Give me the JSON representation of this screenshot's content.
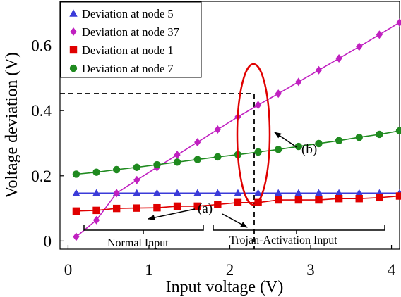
{
  "chart_data": {
    "type": "line",
    "xlabel": "Input voltage (V)",
    "ylabel": "Voltage deviation (V)",
    "xlim": [
      -0.1,
      4.1
    ],
    "ylim": [
      -0.025,
      0.735
    ],
    "xticks": [
      0,
      1,
      2,
      3,
      4
    ],
    "xtick_labels": [
      "0",
      "1",
      "2",
      "3",
      "4"
    ],
    "yticks": [
      0,
      0.2,
      0.4,
      0.6
    ],
    "ytick_labels": [
      "0",
      "0.2",
      "0.4",
      "0.6"
    ],
    "grid": false,
    "legend": "top-left",
    "series": [
      {
        "name": "Deviation at node 5",
        "color": "#3b3bd9",
        "marker": "triangle",
        "x": [
          0.1,
          0.35,
          0.6,
          0.85,
          1.1,
          1.35,
          1.6,
          1.85,
          2.1,
          2.35,
          2.6,
          2.85,
          3.1,
          3.35,
          3.6,
          3.85,
          4.1
        ],
        "y": [
          0.147,
          0.147,
          0.147,
          0.147,
          0.147,
          0.147,
          0.147,
          0.147,
          0.147,
          0.147,
          0.147,
          0.147,
          0.147,
          0.147,
          0.147,
          0.147,
          0.147
        ]
      },
      {
        "name": "Deviation at node 37",
        "color": "#c020c0",
        "marker": "diamond",
        "x": [
          0.1,
          0.35,
          0.6,
          0.85,
          1.1,
          1.35,
          1.6,
          1.85,
          2.1,
          2.35,
          2.6,
          2.85,
          3.1,
          3.35,
          3.6,
          3.85,
          4.1
        ],
        "y": [
          0.013,
          0.064,
          0.147,
          0.187,
          0.226,
          0.264,
          0.303,
          0.342,
          0.381,
          0.417,
          0.452,
          0.488,
          0.524,
          0.56,
          0.596,
          0.633,
          0.67
        ]
      },
      {
        "name": "Deviation at node 1",
        "color": "#e00000",
        "marker": "square",
        "x": [
          0.1,
          0.35,
          0.6,
          0.85,
          1.1,
          1.35,
          1.6,
          1.85,
          2.1,
          2.35,
          2.6,
          2.85,
          3.1,
          3.35,
          3.6,
          3.85,
          4.1
        ],
        "y": [
          0.092,
          0.094,
          0.1,
          0.101,
          0.102,
          0.107,
          0.107,
          0.112,
          0.118,
          0.118,
          0.126,
          0.126,
          0.126,
          0.13,
          0.13,
          0.133,
          0.138
        ]
      },
      {
        "name": "Deviation at node 7",
        "color": "#1f8a1f",
        "marker": "circle",
        "x": [
          0.1,
          0.35,
          0.6,
          0.85,
          1.1,
          1.35,
          1.6,
          1.85,
          2.1,
          2.35,
          2.6,
          2.85,
          3.1,
          3.35,
          3.6,
          3.85,
          4.1
        ],
        "y": [
          0.205,
          0.211,
          0.219,
          0.226,
          0.234,
          0.242,
          0.25,
          0.258,
          0.265,
          0.273,
          0.281,
          0.29,
          0.299,
          0.308,
          0.318,
          0.327,
          0.338
        ]
      }
    ],
    "annotations": [
      {
        "text": "(a)",
        "target": "arrows to Normal Input region and to the vertical dashed line at x = 2.3"
      },
      {
        "text": "(b)",
        "target": "arrow to ellipse around x = 2.3"
      },
      {
        "text": "Normal Input",
        "x_range": [
          0.15,
          1.65
        ]
      },
      {
        "text": "Trojan-Activation Input",
        "x_range": [
          1.8,
          4.0
        ]
      }
    ],
    "reference_lines": {
      "x": 2.3,
      "y": 0.417
    }
  }
}
